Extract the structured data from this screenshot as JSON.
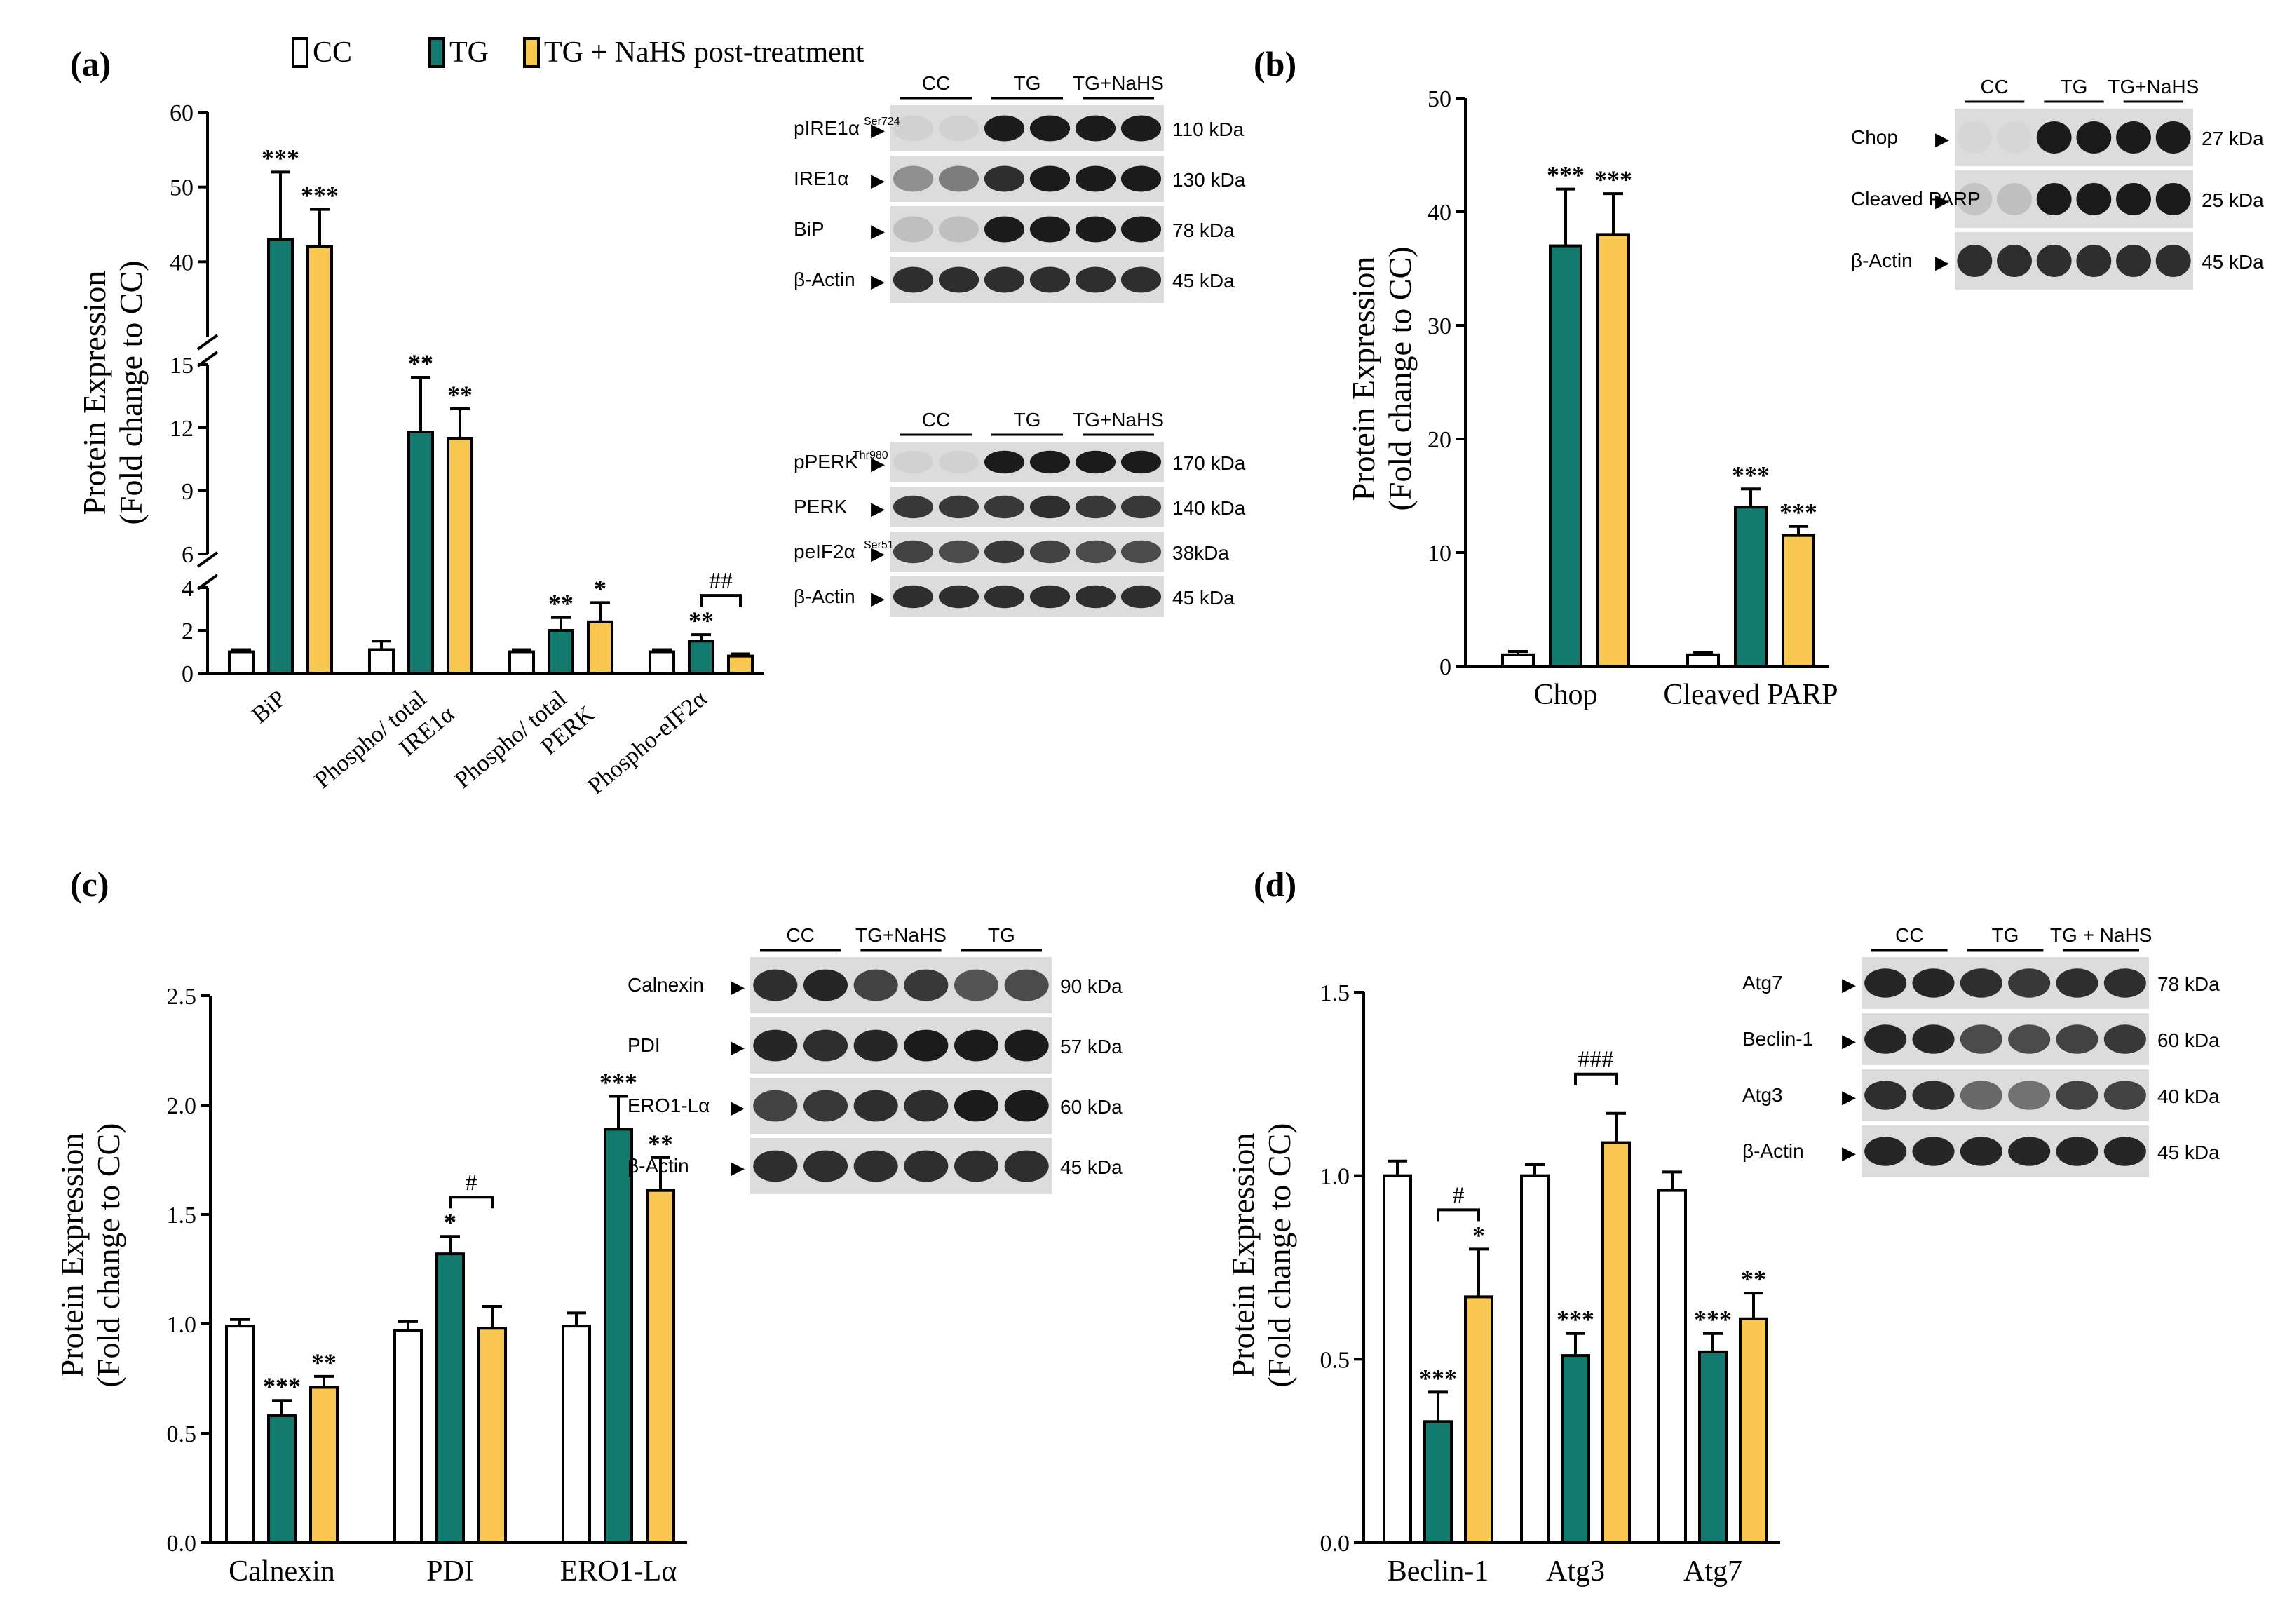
{
  "legend": {
    "items": [
      {
        "name": "CC",
        "color": "#ffffff"
      },
      {
        "name": "TG",
        "color": "#137a6f"
      },
      {
        "name": "TG + NaHS post-treatment",
        "color": "#f9c74f"
      }
    ]
  },
  "colors": {
    "cc": "#ffffff",
    "tg": "#137a6f",
    "nahs": "#f9c74f",
    "band": "#1b1b1b",
    "axis": "#000000"
  },
  "chart_data": [
    {
      "panel": "(a)",
      "type": "bar",
      "ylabel_line1": "Protein Expression",
      "ylabel_line2": "(Fold change to CC)",
      "axis_segments": [
        {
          "range": [
            0,
            4
          ],
          "ticks": [
            0,
            2,
            4
          ]
        },
        {
          "range": [
            6,
            15
          ],
          "ticks": [
            6,
            9,
            12,
            15
          ]
        },
        {
          "range": [
            30,
            60
          ],
          "ticks": [
            40,
            50,
            60
          ]
        }
      ],
      "categories": [
        "BiP",
        "Phospho/ total IRE1α",
        "Phospho/ total PERK",
        "Phospho-eIF2α"
      ],
      "category_lines": [
        [
          "BiP"
        ],
        [
          "Phospho/ total",
          "IRE1α"
        ],
        [
          "Phospho/ total",
          "PERK"
        ],
        [
          "Phospho-eIF2α"
        ]
      ],
      "series": [
        {
          "name": "CC",
          "values": [
            1.0,
            1.1,
            1.0,
            1.0
          ],
          "errors": [
            0.1,
            0.4,
            0.1,
            0.1
          ],
          "stars": [
            "",
            "",
            "",
            ""
          ]
        },
        {
          "name": "TG",
          "values": [
            43,
            11.8,
            2.0,
            1.5
          ],
          "errors": [
            9,
            2.6,
            0.6,
            0.3
          ],
          "stars": [
            "***",
            "**",
            "**",
            "**"
          ]
        },
        {
          "name": "TG + NaHS post-treatment",
          "values": [
            42,
            11.5,
            2.4,
            0.8
          ],
          "errors": [
            5,
            1.4,
            0.9,
            0.1
          ],
          "stars": [
            "***",
            "**",
            "*",
            ""
          ]
        }
      ],
      "brackets": [
        {
          "category": 3,
          "from": "TG",
          "to": "TG + NaHS post-treatment",
          "label": "##"
        }
      ],
      "blots": [
        {
          "groups": [
            "CC",
            "TG",
            "TG+NaHS"
          ],
          "rows": [
            {
              "label": "pIRE1α",
              "sup": "Ser724",
              "kda": "110 kDa",
              "pattern": [
                0.05,
                0.05,
                1,
                1,
                1,
                1
              ]
            },
            {
              "label": "IRE1α",
              "sup": "",
              "kda": "130 kDa",
              "pattern": [
                0.4,
                0.5,
                0.9,
                1,
                1,
                1
              ]
            },
            {
              "label": "BiP",
              "sup": "",
              "kda": "78 kDa",
              "pattern": [
                0.15,
                0.15,
                1,
                1,
                1,
                1
              ]
            },
            {
              "label": "β-Actin",
              "sup": "",
              "kda": "45 kDa",
              "pattern": [
                0.9,
                0.9,
                0.9,
                0.9,
                0.9,
                0.9
              ]
            }
          ]
        },
        {
          "groups": [
            "CC",
            "TG",
            "TG+NaHS"
          ],
          "rows": [
            {
              "label": "pPERK",
              "sup": "Thr980",
              "kda": "170 kDa",
              "pattern": [
                0.05,
                0.05,
                1,
                1,
                1,
                1
              ]
            },
            {
              "label": "PERK",
              "sup": "",
              "kda": "140 kDa",
              "pattern": [
                0.85,
                0.85,
                0.85,
                0.9,
                0.85,
                0.85
              ]
            },
            {
              "label": "peIF2α",
              "sup": "Ser51",
              "kda": "38kDa",
              "pattern": [
                0.8,
                0.75,
                0.85,
                0.8,
                0.75,
                0.75
              ]
            },
            {
              "label": "β-Actin",
              "sup": "",
              "kda": "45 kDa",
              "pattern": [
                0.9,
                0.9,
                0.9,
                0.9,
                0.9,
                0.9
              ]
            }
          ]
        }
      ]
    },
    {
      "panel": "(b)",
      "type": "bar",
      "ylabel_line1": "Protein Expression",
      "ylabel_line2": "(Fold change to CC)",
      "ylim": [
        0,
        50
      ],
      "yticks": [
        0,
        10,
        20,
        30,
        40,
        50
      ],
      "categories": [
        "Chop",
        "Cleaved PARP"
      ],
      "series": [
        {
          "name": "CC",
          "values": [
            1.0,
            1.0
          ],
          "errors": [
            0.3,
            0.2
          ],
          "stars": [
            "",
            ""
          ]
        },
        {
          "name": "TG",
          "values": [
            37,
            14
          ],
          "errors": [
            5,
            1.6
          ],
          "stars": [
            "***",
            "***"
          ]
        },
        {
          "name": "TG + NaHS post-treatment",
          "values": [
            38,
            11.5
          ],
          "errors": [
            3.6,
            0.8
          ],
          "stars": [
            "***",
            "***"
          ]
        }
      ],
      "brackets": [],
      "blots": [
        {
          "groups": [
            "CC",
            "TG",
            "TG+NaHS"
          ],
          "rows": [
            {
              "label": "Chop",
              "sup": "",
              "kda": "27 kDa",
              "pattern": [
                0.02,
                0.02,
                1,
                1,
                1,
                1
              ]
            },
            {
              "label": "Cleaved PARP",
              "sup": "",
              "kda": "25 kDa",
              "pattern": [
                0.12,
                0.15,
                1,
                1,
                1,
                1
              ]
            },
            {
              "label": "β-Actin",
              "sup": "",
              "kda": "45 kDa",
              "pattern": [
                0.9,
                0.9,
                0.9,
                0.9,
                0.9,
                0.9
              ]
            }
          ]
        }
      ]
    },
    {
      "panel": "(c)",
      "type": "bar",
      "ylabel_line1": "Protein Expression",
      "ylabel_line2": "(Fold change to CC)",
      "ylim": [
        0,
        2.5
      ],
      "yticks": [
        0.0,
        0.5,
        1.0,
        1.5,
        2.0,
        2.5
      ],
      "categories": [
        "Calnexin",
        "PDI",
        "ERO1-Lα"
      ],
      "series": [
        {
          "name": "CC",
          "values": [
            0.99,
            0.97,
            0.99
          ],
          "errors": [
            0.03,
            0.04,
            0.06
          ],
          "stars": [
            "",
            "",
            ""
          ]
        },
        {
          "name": "TG",
          "values": [
            0.58,
            1.32,
            1.89
          ],
          "errors": [
            0.07,
            0.08,
            0.15
          ],
          "stars": [
            "***",
            "*",
            "***"
          ]
        },
        {
          "name": "TG + NaHS post-treatment",
          "values": [
            0.71,
            0.98,
            1.61
          ],
          "errors": [
            0.05,
            0.1,
            0.15
          ],
          "stars": [
            "**",
            "",
            "**"
          ]
        }
      ],
      "brackets": [
        {
          "category": 1,
          "from": "TG",
          "to": "TG + NaHS post-treatment",
          "label": "#"
        }
      ],
      "blots": [
        {
          "groups": [
            "CC",
            "TG+NaHS",
            "TG"
          ],
          "rows": [
            {
              "label": "Calnexin",
              "sup": "",
              "kda": "90 kDa",
              "pattern": [
                0.9,
                0.95,
                0.8,
                0.85,
                0.7,
                0.75
              ]
            },
            {
              "label": "PDI",
              "sup": "",
              "kda": "57 kDa",
              "pattern": [
                0.95,
                0.9,
                0.95,
                1,
                1,
                1
              ]
            },
            {
              "label": "ERO1-Lα",
              "sup": "",
              "kda": "60 kDa",
              "pattern": [
                0.8,
                0.85,
                0.9,
                0.9,
                1,
                1
              ]
            },
            {
              "label": "β-Actin",
              "sup": "",
              "kda": "45 kDa",
              "pattern": [
                0.9,
                0.9,
                0.9,
                0.9,
                0.9,
                0.9
              ]
            }
          ]
        }
      ]
    },
    {
      "panel": "(d)",
      "type": "bar",
      "ylabel_line1": "Protein Expression",
      "ylabel_line2": "(Fold change to CC)",
      "ylim": [
        0,
        1.5
      ],
      "yticks": [
        0.0,
        0.5,
        1.0,
        1.5
      ],
      "categories": [
        "Beclin-1",
        "Atg3",
        "Atg7"
      ],
      "series": [
        {
          "name": "CC",
          "values": [
            1.0,
            1.0,
            0.96
          ],
          "errors": [
            0.04,
            0.03,
            0.05
          ],
          "stars": [
            "",
            "",
            ""
          ]
        },
        {
          "name": "TG",
          "values": [
            0.33,
            0.51,
            0.52
          ],
          "errors": [
            0.08,
            0.06,
            0.05
          ],
          "stars": [
            "***",
            "***",
            "***"
          ]
        },
        {
          "name": "TG + NaHS post-treatment",
          "values": [
            0.67,
            1.09,
            0.61
          ],
          "errors": [
            0.13,
            0.08,
            0.07
          ],
          "stars": [
            "*",
            "",
            "**"
          ]
        }
      ],
      "brackets": [
        {
          "category": 0,
          "from": "TG",
          "to": "TG + NaHS post-treatment",
          "label": "#"
        },
        {
          "category": 1,
          "from": "TG",
          "to": "TG + NaHS post-treatment",
          "label": "###"
        }
      ],
      "blots": [
        {
          "groups": [
            "CC",
            "TG",
            "TG + NaHS"
          ],
          "rows": [
            {
              "label": "Atg7",
              "sup": "",
              "kda": "78 kDa",
              "pattern": [
                0.95,
                0.95,
                0.9,
                0.85,
                0.9,
                0.9
              ]
            },
            {
              "label": "Beclin-1",
              "sup": "",
              "kda": "60 kDa",
              "pattern": [
                0.95,
                0.95,
                0.75,
                0.75,
                0.8,
                0.85
              ]
            },
            {
              "label": "Atg3",
              "sup": "",
              "kda": "40 kDa",
              "pattern": [
                0.9,
                0.9,
                0.6,
                0.55,
                0.8,
                0.8
              ]
            },
            {
              "label": "β-Actin",
              "sup": "",
              "kda": "45 kDa",
              "pattern": [
                0.95,
                0.95,
                0.95,
                0.95,
                0.95,
                0.95
              ]
            }
          ]
        }
      ]
    }
  ]
}
